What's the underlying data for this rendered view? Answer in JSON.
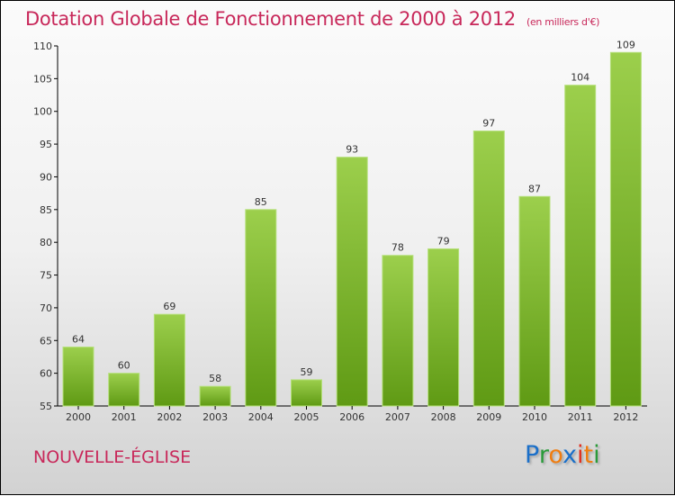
{
  "title": "Dotation Globale de Fonctionnement de 2000 à 2012",
  "subtitle": "(en milliers d'€)",
  "commune": "NOUVELLE-ÉGLISE",
  "logo": {
    "text": "Proxiti",
    "letters": [
      {
        "c": "P",
        "color": "#1a6fc9"
      },
      {
        "c": "r",
        "color": "#2a9a3a"
      },
      {
        "c": "o",
        "color": "#f07d10"
      },
      {
        "c": "x",
        "color": "#1a6fc9"
      },
      {
        "c": "i",
        "color": "#e03020"
      },
      {
        "c": "t",
        "color": "#f07d10"
      },
      {
        "c": "i",
        "color": "#2a9a3a"
      }
    ]
  },
  "colors": {
    "bar_top": "#9ccf4c",
    "bar_bottom": "#5f9a14",
    "title": "#c8285a"
  },
  "chart_data": {
    "type": "bar",
    "title": "Dotation Globale de Fonctionnement de 2000 à 2012",
    "xlabel": "",
    "ylabel": "",
    "categories": [
      "2000",
      "2001",
      "2002",
      "2003",
      "2004",
      "2005",
      "2006",
      "2007",
      "2008",
      "2009",
      "2010",
      "2011",
      "2012"
    ],
    "values": [
      64,
      60,
      69,
      58,
      85,
      59,
      93,
      78,
      79,
      97,
      87,
      104,
      109
    ],
    "ylim": [
      55,
      110
    ],
    "yticks": [
      55,
      60,
      65,
      70,
      75,
      80,
      85,
      90,
      95,
      100,
      105,
      110
    ],
    "grid": false
  }
}
